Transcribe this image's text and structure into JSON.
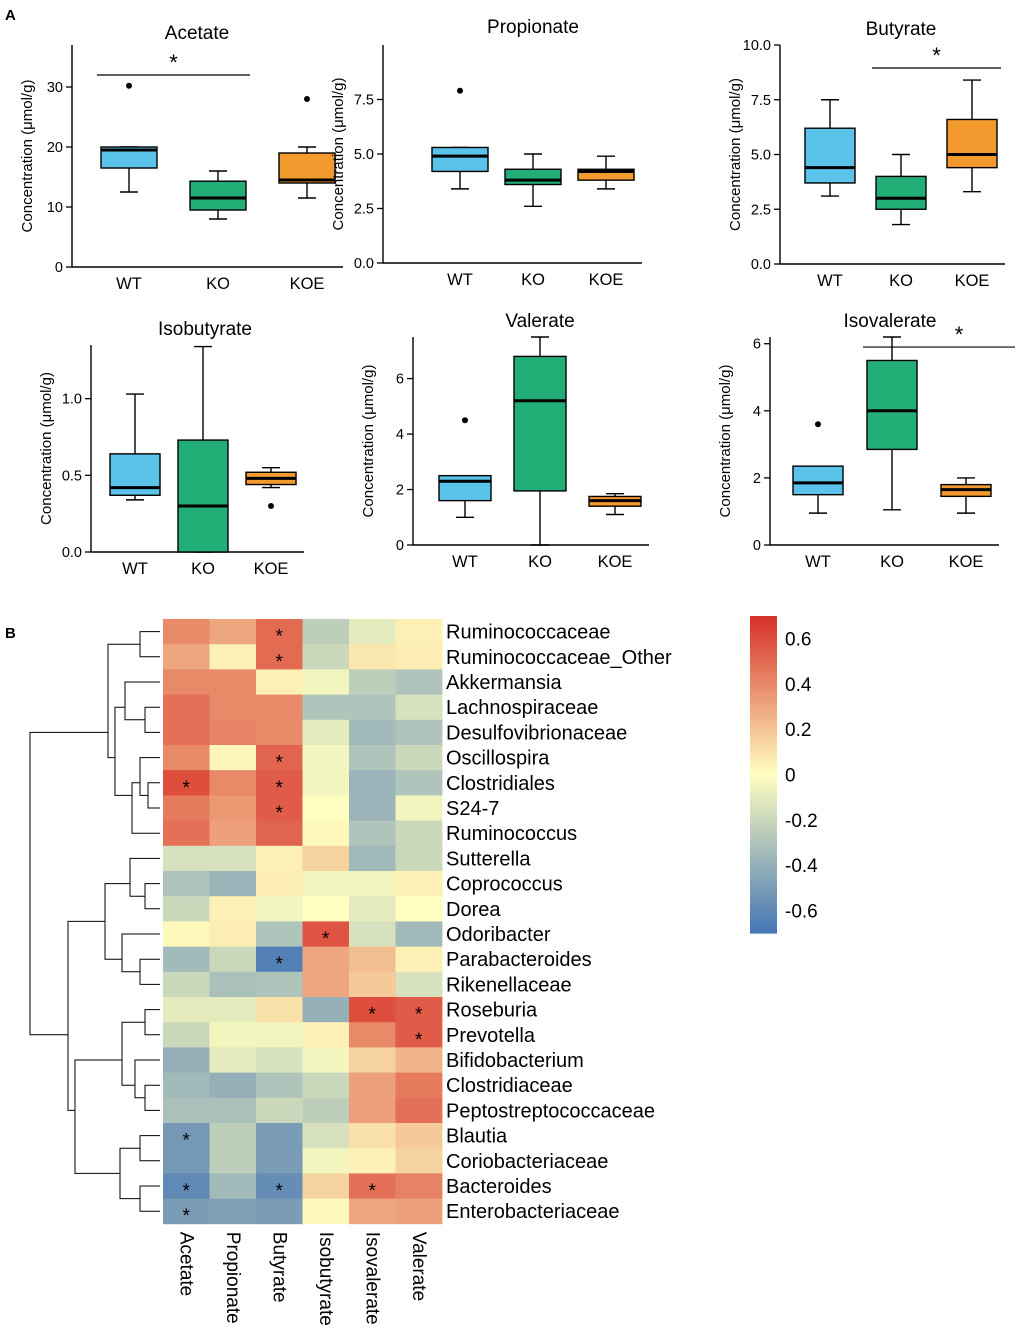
{
  "panel_labels": [
    "A",
    "B"
  ],
  "chart_data": [
    {
      "type": "box",
      "title": "Acetate",
      "ylabel": "Concentration (μmol/g)",
      "categories": [
        "WT",
        "KO",
        "KOE"
      ],
      "ylim": [
        0,
        37
      ],
      "yticks": [
        0,
        10,
        20,
        30
      ],
      "ytick_labels": [
        "0",
        "10",
        "20",
        "30"
      ],
      "boxes": [
        {
          "group": "WT",
          "color": "#5bc3ea",
          "min": 12.5,
          "q1": 16.5,
          "median": 19.5,
          "q3": 20,
          "max": 20,
          "outliers": [
            30.2
          ]
        },
        {
          "group": "KO",
          "color": "#23ae78",
          "min": 8,
          "q1": 9.5,
          "median": 11.5,
          "q3": 14.3,
          "max": 16,
          "outliers": []
        },
        {
          "group": "KOE",
          "color": "#f39a2f",
          "min": 11.5,
          "q1": 14,
          "median": 14.5,
          "q3": 19,
          "max": 20,
          "outliers": [
            28
          ]
        }
      ],
      "significance": {
        "label": "*",
        "from": "WT",
        "to": "KO",
        "y": 32
      }
    },
    {
      "type": "box",
      "title": "Propionate",
      "ylabel": "Concentration (μmol/g)",
      "categories": [
        "WT",
        "KO",
        "KOE"
      ],
      "ylim": [
        0,
        10
      ],
      "yticks": [
        0,
        2.5,
        5,
        7.5
      ],
      "ytick_labels": [
        "0.0",
        "2.5",
        "5.0",
        "7.5"
      ],
      "boxes": [
        {
          "group": "WT",
          "color": "#5bc3ea",
          "min": 3.4,
          "q1": 4.2,
          "median": 4.9,
          "q3": 5.3,
          "max": 5.3,
          "outliers": [
            7.9
          ]
        },
        {
          "group": "KO",
          "color": "#23ae78",
          "min": 2.6,
          "q1": 3.6,
          "median": 3.8,
          "q3": 4.3,
          "max": 5.0,
          "outliers": []
        },
        {
          "group": "KOE",
          "color": "#f39a2f",
          "min": 3.4,
          "q1": 3.8,
          "median": 4.2,
          "q3": 4.3,
          "max": 4.9,
          "outliers": []
        }
      ]
    },
    {
      "type": "box",
      "title": "Butyrate",
      "ylabel": "Concentration (μmol/g)",
      "categories": [
        "WT",
        "KO",
        "KOE"
      ],
      "ylim": [
        0,
        10
      ],
      "yticks": [
        0,
        2.5,
        5,
        7.5,
        10
      ],
      "ytick_labels": [
        "0.0",
        "2.5",
        "5.0",
        "7.5",
        "10.0"
      ],
      "boxes": [
        {
          "group": "WT",
          "color": "#5bc3ea",
          "min": 3.1,
          "q1": 3.7,
          "median": 4.4,
          "q3": 6.2,
          "max": 7.5,
          "outliers": []
        },
        {
          "group": "KO",
          "color": "#23ae78",
          "min": 1.8,
          "q1": 2.5,
          "median": 3.0,
          "q3": 4.0,
          "max": 5.0,
          "outliers": []
        },
        {
          "group": "KOE",
          "color": "#f39a2f",
          "min": 3.3,
          "q1": 4.4,
          "median": 5.0,
          "q3": 6.6,
          "max": 8.4,
          "outliers": []
        }
      ],
      "significance": {
        "label": "*",
        "from": "KO",
        "to": "KOE",
        "y": 8.95
      }
    },
    {
      "type": "box",
      "title": "Isobutyrate",
      "ylabel": "Concentration (μmol/g)",
      "categories": [
        "WT",
        "KO",
        "KOE"
      ],
      "ylim": [
        0,
        1.35
      ],
      "yticks": [
        0,
        0.5,
        1.0
      ],
      "ytick_labels": [
        "0.0",
        "0.5",
        "1.0"
      ],
      "boxes": [
        {
          "group": "WT",
          "color": "#5bc3ea",
          "min": 0.34,
          "q1": 0.37,
          "median": 0.42,
          "q3": 0.64,
          "max": 1.03,
          "outliers": []
        },
        {
          "group": "KO",
          "color": "#23ae78",
          "min": 0.0,
          "q1": 0.0,
          "median": 0.3,
          "q3": 0.73,
          "max": 1.34,
          "outliers": []
        },
        {
          "group": "KOE",
          "color": "#f39a2f",
          "min": 0.42,
          "q1": 0.44,
          "median": 0.48,
          "q3": 0.52,
          "max": 0.55,
          "outliers": [
            0.3
          ]
        }
      ]
    },
    {
      "type": "box",
      "title": "Valerate",
      "ylabel": "Concentration (μmol/g)",
      "categories": [
        "WT",
        "KO",
        "KOE"
      ],
      "ylim": [
        0,
        7.5
      ],
      "yticks": [
        0,
        2,
        4,
        6
      ],
      "ytick_labels": [
        "0",
        "2",
        "4",
        "6"
      ],
      "boxes": [
        {
          "group": "WT",
          "color": "#5bc3ea",
          "min": 1.0,
          "q1": 1.6,
          "median": 2.3,
          "q3": 2.5,
          "max": 2.5,
          "outliers": [
            4.5
          ]
        },
        {
          "group": "KO",
          "color": "#23ae78",
          "min": 0.0,
          "q1": 1.95,
          "median": 5.2,
          "q3": 6.8,
          "max": 7.5,
          "outliers": []
        },
        {
          "group": "KOE",
          "color": "#f39a2f",
          "min": 1.1,
          "q1": 1.4,
          "median": 1.6,
          "q3": 1.75,
          "max": 1.85,
          "outliers": []
        }
      ]
    },
    {
      "type": "box",
      "title": "Isovalerate",
      "ylabel": "Concentration (μmol/g)",
      "categories": [
        "WT",
        "KO",
        "KOE"
      ],
      "ylim": [
        0,
        6.2
      ],
      "yticks": [
        0,
        2,
        4,
        6
      ],
      "ytick_labels": [
        "0",
        "2",
        "4",
        "6"
      ],
      "boxes": [
        {
          "group": "WT",
          "color": "#5bc3ea",
          "min": 0.95,
          "q1": 1.5,
          "median": 1.85,
          "q3": 2.35,
          "max": 2.35,
          "outliers": [
            3.6
          ]
        },
        {
          "group": "KO",
          "color": "#23ae78",
          "min": 1.05,
          "q1": 2.85,
          "median": 4.0,
          "q3": 5.5,
          "max": 6.2,
          "outliers": []
        },
        {
          "group": "KOE",
          "color": "#f39a2f",
          "min": 0.95,
          "q1": 1.45,
          "median": 1.65,
          "q3": 1.8,
          "max": 2.0,
          "outliers": []
        }
      ],
      "significance": {
        "label": "*",
        "from": "KO",
        "to": "KOE",
        "y": 5.9,
        "extends_right": true
      }
    },
    {
      "type": "heatmap",
      "rows": [
        "Ruminococcaceae",
        "Ruminococcaceae_Other",
        "Akkermansia",
        "Lachnospiraceae",
        "Desulfovibrionaceae",
        "Oscillospira",
        "Clostridiales",
        "S24-7",
        "Ruminococcus",
        "Sutterella",
        "Coprococcus",
        "Dorea",
        "Odoribacter",
        "Parabacteroides",
        "Rikenellaceae",
        "Roseburia",
        "Prevotella",
        "Bifidobacterium",
        "Clostridiaceae",
        "Peptostreptococcaceae",
        "Blautia",
        "Coriobacteriaceae",
        "Bacteroides",
        "Enterobacteriaceae"
      ],
      "columns": [
        "Acetate",
        "Propionate",
        "Butyrate",
        "Isobutyrate",
        "Isovalerate",
        "Valerate"
      ],
      "values": [
        [
          0.4,
          0.3,
          0.5,
          -0.25,
          -0.1,
          0.05
        ],
        [
          0.3,
          0.05,
          0.5,
          -0.2,
          0.08,
          0.06
        ],
        [
          0.4,
          0.4,
          0.05,
          -0.05,
          -0.25,
          -0.3
        ],
        [
          0.48,
          0.4,
          0.4,
          -0.3,
          -0.3,
          -0.15
        ],
        [
          0.48,
          0.42,
          0.4,
          -0.1,
          -0.35,
          -0.3
        ],
        [
          0.4,
          0.03,
          0.52,
          -0.05,
          -0.3,
          -0.2
        ],
        [
          0.6,
          0.4,
          0.55,
          -0.05,
          -0.38,
          -0.3
        ],
        [
          0.45,
          0.35,
          0.55,
          0.0,
          -0.38,
          -0.05
        ],
        [
          0.48,
          0.32,
          0.52,
          0.02,
          -0.3,
          -0.2
        ],
        [
          -0.15,
          -0.15,
          0.05,
          0.15,
          -0.35,
          -0.2
        ],
        [
          -0.3,
          -0.38,
          0.06,
          -0.05,
          -0.05,
          0.05
        ],
        [
          -0.2,
          0.05,
          -0.05,
          0.0,
          -0.1,
          0.0
        ],
        [
          0.02,
          0.06,
          -0.3,
          0.58,
          -0.15,
          -0.35
        ],
        [
          -0.35,
          -0.2,
          -0.65,
          0.3,
          0.22,
          0.05
        ],
        [
          -0.2,
          -0.32,
          -0.3,
          0.3,
          0.18,
          -0.15
        ],
        [
          -0.1,
          -0.1,
          0.1,
          -0.4,
          0.6,
          0.55
        ],
        [
          -0.2,
          -0.05,
          -0.05,
          0.05,
          0.4,
          0.55
        ],
        [
          -0.4,
          -0.1,
          -0.15,
          -0.05,
          0.15,
          0.25
        ],
        [
          -0.35,
          -0.4,
          -0.3,
          -0.2,
          0.32,
          0.45
        ],
        [
          -0.32,
          -0.32,
          -0.2,
          -0.25,
          0.32,
          0.48
        ],
        [
          -0.52,
          -0.25,
          -0.5,
          -0.15,
          0.1,
          0.18
        ],
        [
          -0.52,
          -0.25,
          -0.5,
          -0.05,
          0.05,
          0.15
        ],
        [
          -0.6,
          -0.35,
          -0.58,
          0.15,
          0.48,
          0.42
        ],
        [
          -0.5,
          -0.48,
          -0.5,
          0.02,
          0.3,
          0.32
        ]
      ],
      "significance_cells": [
        [
          0,
          2
        ],
        [
          1,
          2
        ],
        [
          5,
          2
        ],
        [
          6,
          0
        ],
        [
          6,
          2
        ],
        [
          7,
          2
        ],
        [
          12,
          3
        ],
        [
          13,
          2
        ],
        [
          15,
          4
        ],
        [
          15,
          5
        ],
        [
          16,
          5
        ],
        [
          20,
          0
        ],
        [
          22,
          0
        ],
        [
          22,
          2
        ],
        [
          22,
          4
        ],
        [
          23,
          0
        ]
      ],
      "significance_label": "*",
      "colorbar": {
        "range": [
          -0.7,
          0.7
        ],
        "ticks": [
          0.6,
          0.4,
          0.2,
          0,
          -0.2,
          -0.4,
          -0.6
        ],
        "tick_labels": [
          "0.6",
          "0.4",
          "0.2",
          "0",
          "-0.2",
          "-0.4",
          "-0.6"
        ]
      },
      "colors": {
        "neg": "#4575b4",
        "mid": "#ffffbf",
        "pos": "#d73027"
      }
    }
  ]
}
